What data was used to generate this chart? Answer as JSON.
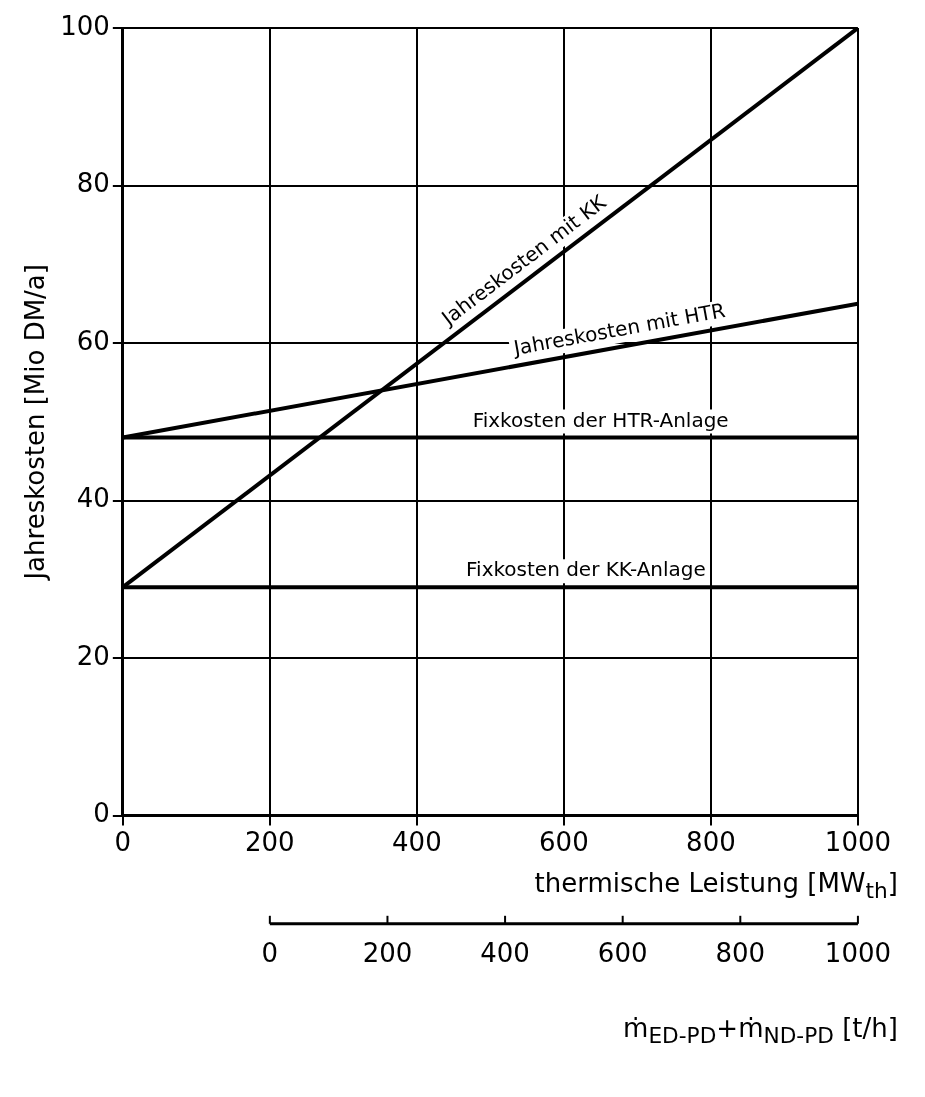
{
  "chart_data": {
    "type": "line",
    "xlabel": "thermische Leistung [MW$_{th}$]",
    "ylabel": "Jahreskosten [Mio DM/a]",
    "x2label": "ṁ$_{ED-PD}$+ṁ$_{ND-PD}$ [t/h]",
    "x": [
      0,
      1000
    ],
    "series": [
      {
        "name": "Jahreskosten mit KK",
        "color": "#000000",
        "values": [
          29,
          100
        ]
      },
      {
        "name": "Jahreskosten mit HTR",
        "color": "#000000",
        "values": [
          48,
          65
        ]
      },
      {
        "name": "Fixkosten der HTR-Anlage",
        "color": "#000000",
        "values": [
          48,
          48
        ]
      },
      {
        "name": "Fixkosten der KK-Anlage",
        "color": "#000000",
        "values": [
          29,
          29
        ]
      }
    ],
    "xlim": [
      0,
      1000
    ],
    "xticks": [
      0,
      200,
      400,
      600,
      800,
      1000
    ],
    "ylim": [
      0,
      100
    ],
    "yticks": [
      0,
      20,
      40,
      60,
      80,
      100
    ],
    "x2lim": [
      -250,
      1000
    ],
    "x2ticks": [
      0,
      200,
      400,
      600,
      800,
      1000
    ],
    "grid": true,
    "legend": false,
    "marker": "none",
    "line_style": "solid"
  }
}
